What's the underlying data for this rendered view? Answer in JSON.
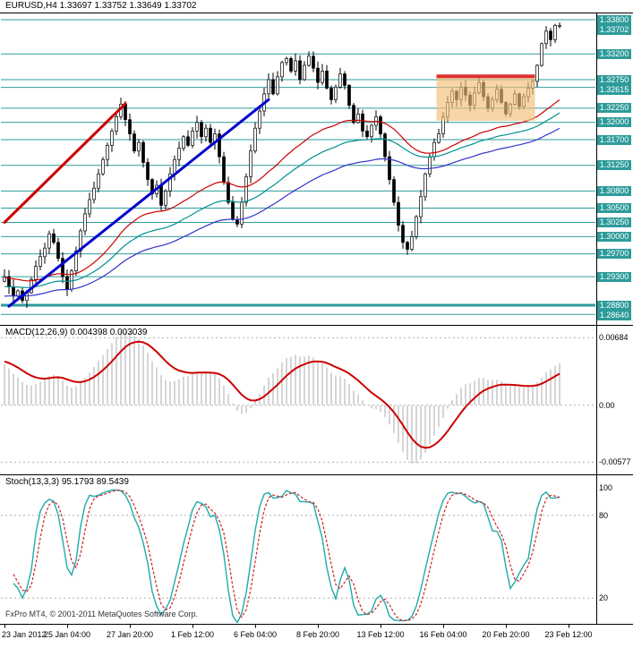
{
  "header": {
    "symbol_line": "EURUSD,H4 1.33697 1.33752 1.33649 1.33702"
  },
  "macd_panel": {
    "header": "MACD(12,26,9) 0.004398 0.003039"
  },
  "stoch_panel": {
    "header": "Stoch(13,3,3) 95.1793 89.5439"
  },
  "footer": {
    "copyright": "FxPro MT4, © 2001-2011 MetaQuotes Software Corp."
  },
  "colors": {
    "scale_box": "#2E9B9B",
    "grid_line": "#2E9B9B",
    "bull": "#FFFFFF",
    "bear": "#000000",
    "outline": "#000000",
    "border": "#000000"
  },
  "chart_data": [
    {
      "type": "candlestick",
      "title": "EURUSD,H4",
      "timeframe": "H4",
      "current_bar": {
        "open": 1.33697,
        "high": 1.33752,
        "low": 1.33649,
        "close": 1.33702
      },
      "ylim": [
        1.28486,
        1.3391
      ],
      "closes": [
        1.293,
        1.2912,
        1.2896,
        1.2905,
        1.2888,
        1.2902,
        1.2925,
        1.2948,
        1.2965,
        1.298,
        1.3005,
        1.299,
        1.2962,
        1.293,
        1.2908,
        1.294,
        1.2975,
        1.301,
        1.304,
        1.3065,
        1.3085,
        1.311,
        1.3135,
        1.316,
        1.3185,
        1.321,
        1.3232,
        1.3205,
        1.318,
        1.315,
        1.3165,
        1.313,
        1.31,
        1.3075,
        1.309,
        1.3055,
        1.308,
        1.311,
        1.3135,
        1.3155,
        1.3175,
        1.316,
        1.3185,
        1.32,
        1.3175,
        1.319,
        1.3165,
        1.318,
        1.314,
        1.3095,
        1.306,
        1.303,
        1.3022,
        1.306,
        1.3105,
        1.315,
        1.319,
        1.322,
        1.325,
        1.3275,
        1.325,
        1.328,
        1.3305,
        1.3312,
        1.329,
        1.3308,
        1.3275,
        1.33,
        1.3316,
        1.3295,
        1.327,
        1.329,
        1.326,
        1.324,
        1.3262,
        1.3285,
        1.3265,
        1.323,
        1.32,
        1.3215,
        1.3185,
        1.3175,
        1.3195,
        1.321,
        1.318,
        1.314,
        1.31,
        1.306,
        1.302,
        1.299,
        1.2978,
        1.3,
        1.3035,
        1.307,
        1.311,
        1.314,
        1.3165,
        1.318,
        1.321,
        1.3235,
        1.3255,
        1.324,
        1.3262,
        1.3248,
        1.323,
        1.3252,
        1.327,
        1.3245,
        1.3225,
        1.324,
        1.3258,
        1.3235,
        1.3215,
        1.3232,
        1.325,
        1.3228,
        1.3245,
        1.326,
        1.3272,
        1.33,
        1.3338,
        1.336,
        1.3345,
        1.337,
        1.33702
      ],
      "x_ticks": [
        {
          "bar": 0,
          "label": "23 Jan 2012"
        },
        {
          "bar": 14,
          "label": "25 Jan 04:00"
        },
        {
          "bar": 28,
          "label": "27 Jan 20:00"
        },
        {
          "bar": 42,
          "label": "1 Feb 12:00"
        },
        {
          "bar": 56,
          "label": "6 Feb 04:00"
        },
        {
          "bar": 70,
          "label": "8 Feb 20:00"
        },
        {
          "bar": 84,
          "label": "13 Feb 12:00"
        },
        {
          "bar": 98,
          "label": "16 Feb 04:00"
        },
        {
          "bar": 112,
          "label": "20 Feb 20:00"
        },
        {
          "bar": 126,
          "label": "23 Feb 12:00"
        }
      ],
      "scale_labels": [
        {
          "label": "1.33800",
          "value": 1.338,
          "line": true,
          "width": 1
        },
        {
          "label": "1.33702",
          "value": 1.33702,
          "line": false,
          "width": 0
        },
        {
          "label": "1.33200",
          "value": 1.332,
          "line": true,
          "width": 1
        },
        {
          "label": "1.32750",
          "value": 1.3275,
          "line": true,
          "width": 1
        },
        {
          "label": "1.32615",
          "value": 1.32615,
          "line": true,
          "width": 1
        },
        {
          "label": "1.32250",
          "value": 1.3225,
          "line": true,
          "width": 1
        },
        {
          "label": "1.32000",
          "value": 1.32,
          "line": true,
          "width": 1
        },
        {
          "label": "1.31700",
          "value": 1.317,
          "line": true,
          "width": 1
        },
        {
          "label": "1.31250",
          "value": 1.3125,
          "line": true,
          "width": 1
        },
        {
          "label": "1.30800",
          "value": 1.308,
          "line": true,
          "width": 1
        },
        {
          "label": "1.30500",
          "value": 1.305,
          "line": true,
          "width": 1
        },
        {
          "label": "1.30250",
          "value": 1.3025,
          "line": true,
          "width": 1
        },
        {
          "label": "1.30000",
          "value": 1.3,
          "line": true,
          "width": 1
        },
        {
          "label": "1.29700",
          "value": 1.297,
          "line": true,
          "width": 1
        },
        {
          "label": "1.29300",
          "value": 1.293,
          "line": true,
          "width": 1
        },
        {
          "label": "1.28800",
          "value": 1.288,
          "line": true,
          "width": 3
        },
        {
          "label": "1.28640",
          "value": 1.2864,
          "line": true,
          "width": 1
        }
      ],
      "trend_lines": [
        {
          "color": "#CC0000",
          "width": 3,
          "from": {
            "bar": 0,
            "price": 1.3025
          },
          "to": {
            "bar": 27,
            "price": 1.3233
          }
        },
        {
          "color": "#0000CC",
          "width": 3,
          "from": {
            "bar": 1,
            "price": 1.2878
          },
          "to": {
            "bar": 59,
            "price": 1.324
          }
        }
      ],
      "zone": {
        "from_bar": 97,
        "to_bar": 118,
        "top": 1.3281,
        "bottom": 1.3203,
        "fill": "#F5BF7A",
        "fill_opacity": 0.65,
        "top_line_color": "#E03030",
        "top_line_width": 4
      },
      "moving_averages": [
        {
          "color": "#CC0000",
          "period": 45,
          "seed": 1.2928
        },
        {
          "color": "#009090",
          "period": 65,
          "seed": 1.2912
        },
        {
          "color": "#3333CC",
          "period": 90,
          "seed": 1.2895
        }
      ]
    },
    {
      "type": "line",
      "title": "MACD(12,26,9)",
      "params": [
        12,
        26,
        9
      ],
      "values": {
        "main": 0.004398,
        "signal": 0.003039
      },
      "ylim": [
        -0.00682,
        0.00769
      ],
      "scale_labels": [
        {
          "label": "0.00684",
          "value": 0.00684
        },
        {
          "label": "0.00",
          "value": 0
        },
        {
          "label": "-0.00577",
          "value": -0.00577
        }
      ],
      "colors": {
        "histogram": "#ABABAB",
        "signal": "#CC0000"
      }
    },
    {
      "type": "line",
      "title": "Stoch(13,3,3)",
      "params": [
        13,
        3,
        3
      ],
      "values": {
        "main": 95.1793,
        "signal": 89.5439
      },
      "ylim": [
        0,
        100
      ],
      "levels": [
        80,
        20
      ],
      "scale_labels": [
        {
          "label": "100",
          "value": 100
        },
        {
          "label": "80",
          "value": 80
        },
        {
          "label": "20",
          "value": 20
        }
      ],
      "colors": {
        "main": "#20AAAA",
        "signal": "#CC2222"
      }
    }
  ]
}
